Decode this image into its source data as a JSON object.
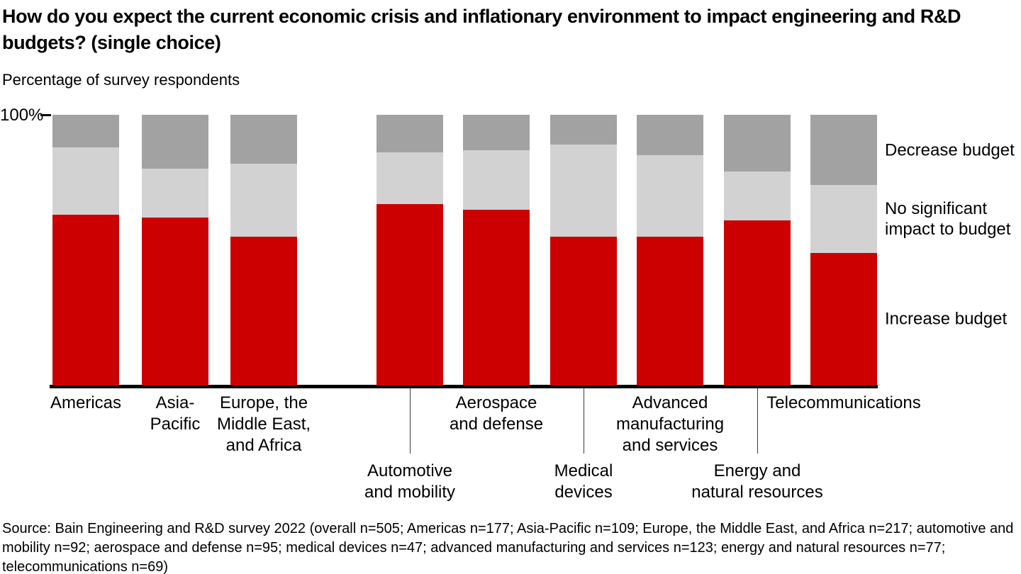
{
  "title": "How do you expect the current economic crisis and inflationary environment to impact engineering and R&D budgets? (single choice)",
  "subtitle": "Percentage of survey respondents",
  "axis": {
    "y_top_label": "100%"
  },
  "source": "Source: Bain Engineering and R&D survey 2022 (overall n=505; Americas n=177; Asia-Pacific n=109; Europe, the Middle East, and Africa n=217; automotive and mobility n=92; aerospace and defense n=95; medical devices n=47; advanced manufacturing and services n=123; energy and natural resources n=77; telecommunications n=69)",
  "chart_data": {
    "type": "bar",
    "variant": "stacked-100-percent",
    "unit": "percent of survey respondents",
    "ylim": [
      0,
      100
    ],
    "grid": false,
    "legend_position": "right",
    "title": "How do you expect the current economic crisis and inflationary environment to impact engineering and R&D budgets? (single choice)",
    "ylabel": "Percentage of survey respondents",
    "categories": [
      {
        "label": "Americas",
        "row": 1
      },
      {
        "label": "Asia-Pacific",
        "row": 1
      },
      {
        "label": "Europe, the Middle East, and Africa",
        "row": 1
      },
      {
        "label": "Automotive and mobility",
        "row": 2
      },
      {
        "label": "Aerospace and defense",
        "row": 1
      },
      {
        "label": "Medical devices",
        "row": 2
      },
      {
        "label": "Advanced manufacturing and services",
        "row": 1
      },
      {
        "label": "Energy and natural resources",
        "row": 2
      },
      {
        "label": "Telecommunications",
        "row": 1
      }
    ],
    "series": [
      {
        "name": "Increase budget",
        "color": "#cc0000",
        "values": [
          63,
          62,
          55,
          67,
          65,
          55,
          55,
          61,
          49
        ]
      },
      {
        "name": "No significant impact to budget",
        "color": "#d2d2d2",
        "values": [
          25,
          18,
          27,
          19,
          22,
          34,
          30,
          18,
          25
        ]
      },
      {
        "name": "Decrease budget",
        "color": "#a2a2a2",
        "values": [
          12,
          20,
          18,
          14,
          13,
          11,
          15,
          21,
          26
        ]
      }
    ]
  }
}
